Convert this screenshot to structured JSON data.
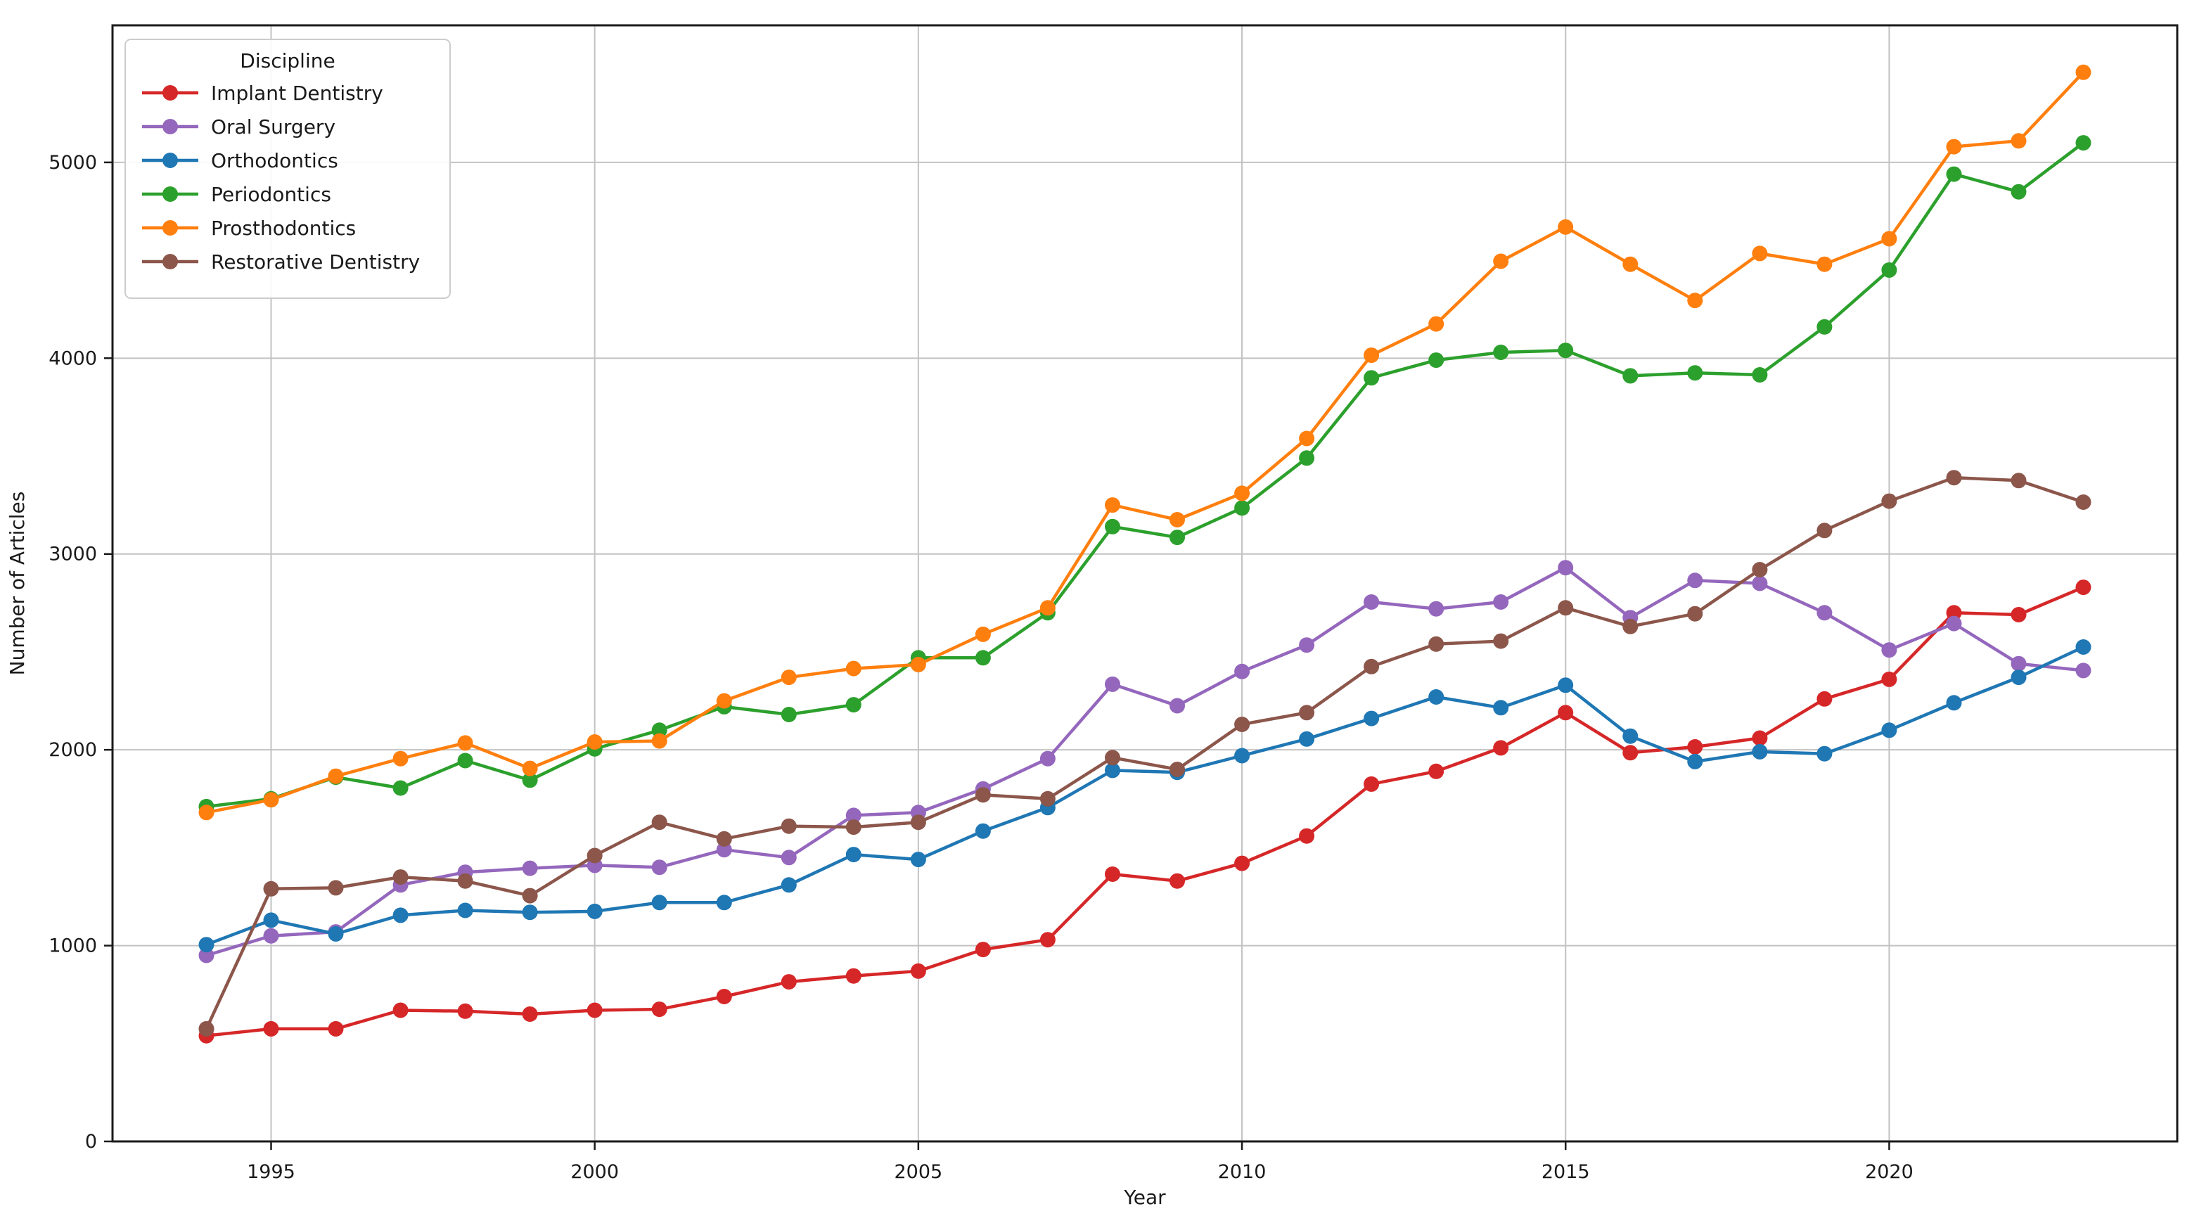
{
  "figure": {
    "background": "#ffffff",
    "grid_color": "#c2c2c2",
    "spine_color": "#1a1a1a",
    "tick_color": "#1a1a1a"
  },
  "chart_data": {
    "type": "line",
    "title": "",
    "xlabel": "Year",
    "ylabel": "Number of Articles",
    "xlim": [
      1992.55,
      2024.45
    ],
    "ylim": [
      0,
      5700
    ],
    "xticks": [
      1995,
      2000,
      2005,
      2010,
      2015,
      2020
    ],
    "yticks": [
      0,
      1000,
      2000,
      3000,
      4000,
      5000
    ],
    "grid": true,
    "legend": {
      "title": "Discipline",
      "position": "upper-left"
    },
    "x": [
      1994,
      1995,
      1996,
      1997,
      1998,
      1999,
      2000,
      2001,
      2002,
      2003,
      2004,
      2005,
      2006,
      2007,
      2008,
      2009,
      2010,
      2011,
      2012,
      2013,
      2014,
      2015,
      2016,
      2017,
      2018,
      2019,
      2020,
      2021,
      2022,
      2023
    ],
    "series": [
      {
        "name": "Implant Dentistry",
        "color": "#d62728",
        "values": [
          540,
          575,
          575,
          670,
          665,
          650,
          670,
          675,
          740,
          815,
          845,
          870,
          980,
          1030,
          1365,
          1330,
          1420,
          1560,
          1825,
          1890,
          2010,
          2190,
          1985,
          2015,
          2060,
          2260,
          2360,
          2700,
          2690,
          2830
        ]
      },
      {
        "name": "Oral Surgery",
        "color": "#9467bd",
        "values": [
          950,
          1050,
          1070,
          1310,
          1375,
          1395,
          1410,
          1400,
          1490,
          1450,
          1665,
          1680,
          1800,
          1955,
          2335,
          2225,
          2400,
          2535,
          2755,
          2720,
          2755,
          2930,
          2675,
          2865,
          2850,
          2700,
          2510,
          2645,
          2440,
          2405
        ]
      },
      {
        "name": "Orthodontics",
        "color": "#1f77b4",
        "values": [
          1005,
          1130,
          1060,
          1155,
          1180,
          1170,
          1175,
          1220,
          1220,
          1310,
          1465,
          1440,
          1585,
          1705,
          1895,
          1885,
          1970,
          2055,
          2160,
          2270,
          2215,
          2330,
          2070,
          1940,
          1990,
          1980,
          2100,
          2240,
          2370,
          2525
        ]
      },
      {
        "name": "Periodontics",
        "color": "#2ca02c",
        "values": [
          1710,
          1750,
          1860,
          1805,
          1945,
          1845,
          2005,
          2100,
          2220,
          2180,
          2230,
          2470,
          2470,
          2700,
          3140,
          3085,
          3235,
          3490,
          3900,
          3990,
          4030,
          4040,
          3910,
          3925,
          3915,
          4160,
          4450,
          4940,
          4850,
          5100
        ]
      },
      {
        "name": "Prosthodontics",
        "color": "#ff7f0e",
        "values": [
          1680,
          1745,
          1865,
          1955,
          2035,
          1905,
          2040,
          2045,
          2250,
          2370,
          2415,
          2435,
          2590,
          2725,
          3250,
          3175,
          3310,
          3590,
          4015,
          4175,
          4495,
          4670,
          4480,
          4295,
          4535,
          4480,
          4610,
          5080,
          5110,
          5460
        ]
      },
      {
        "name": "Restorative Dentistry",
        "color": "#8c564b",
        "values": [
          575,
          1290,
          1295,
          1350,
          1330,
          1255,
          1460,
          1630,
          1545,
          1610,
          1605,
          1630,
          1770,
          1750,
          1960,
          1900,
          2130,
          2190,
          2425,
          2540,
          2555,
          2725,
          2630,
          2695,
          2920,
          3120,
          3270,
          3390,
          3375,
          3265
        ]
      }
    ]
  }
}
